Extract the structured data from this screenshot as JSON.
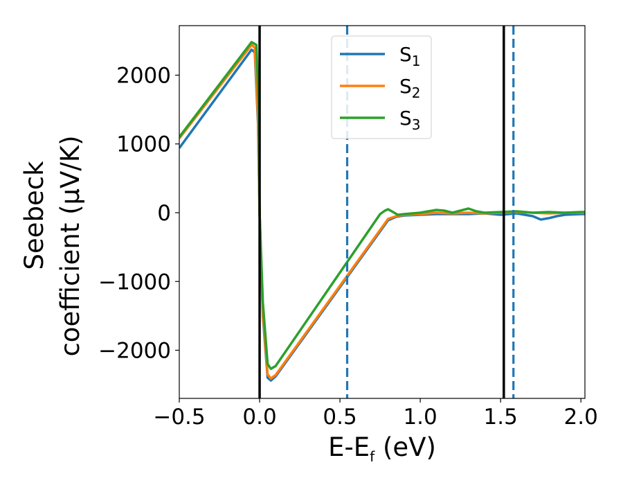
{
  "chart_data": {
    "type": "line",
    "xlabel_main": "E-E",
    "xlabel_sub": "f",
    "xlabel_unit": " (eV)",
    "ylabel_line1": "Seebeck",
    "ylabel_line2": "coefficient  (μV/K)",
    "xlim": [
      -0.5,
      2.025
    ],
    "ylim": [
      -2700,
      2720
    ],
    "xticks": [
      -0.5,
      0.0,
      0.5,
      1.0,
      1.5,
      2.0
    ],
    "xtick_labels": [
      "−0.5",
      "0.0",
      "0.5",
      "1.0",
      "1.5",
      "2.0"
    ],
    "yticks": [
      2000,
      1000,
      0,
      -1000,
      -2000
    ],
    "ytick_labels": [
      "2000",
      "1000",
      "0",
      "−1000",
      "−2000"
    ],
    "legend_position": "upper-center",
    "vlines": [
      {
        "x": 0.0,
        "style": "solid",
        "color": "#000000"
      },
      {
        "x": 1.52,
        "style": "solid",
        "color": "#000000"
      },
      {
        "x": 0.545,
        "style": "dashed",
        "color": "#1f77b4"
      },
      {
        "x": 1.58,
        "style": "dashed",
        "color": "#1f77b4"
      }
    ],
    "series": [
      {
        "name": "S",
        "sub": "1",
        "color": "#1f77b4",
        "points": [
          [
            -0.5,
            940
          ],
          [
            -0.05,
            2370
          ],
          [
            -0.03,
            2330
          ],
          [
            -0.01,
            1300
          ],
          [
            0.0,
            0
          ],
          [
            0.02,
            -1500
          ],
          [
            0.05,
            -2400
          ],
          [
            0.07,
            -2440
          ],
          [
            0.1,
            -2380
          ],
          [
            0.8,
            -110
          ],
          [
            0.85,
            -60
          ],
          [
            0.9,
            -40
          ],
          [
            1.0,
            -30
          ],
          [
            1.1,
            -20
          ],
          [
            1.2,
            -20
          ],
          [
            1.3,
            -20
          ],
          [
            1.4,
            -10
          ],
          [
            1.5,
            -30
          ],
          [
            1.55,
            -20
          ],
          [
            1.6,
            -10
          ],
          [
            1.7,
            -50
          ],
          [
            1.75,
            -100
          ],
          [
            1.8,
            -80
          ],
          [
            1.85,
            -50
          ],
          [
            1.9,
            -30
          ],
          [
            2.0,
            -20
          ],
          [
            2.025,
            -20
          ]
        ]
      },
      {
        "name": "S",
        "sub": "2",
        "color": "#ff7f0e",
        "points": [
          [
            -0.5,
            1080
          ],
          [
            -0.05,
            2440
          ],
          [
            -0.03,
            2400
          ],
          [
            -0.01,
            1400
          ],
          [
            0.0,
            0
          ],
          [
            0.02,
            -1450
          ],
          [
            0.05,
            -2350
          ],
          [
            0.07,
            -2410
          ],
          [
            0.1,
            -2360
          ],
          [
            0.8,
            -90
          ],
          [
            0.85,
            -50
          ],
          [
            0.9,
            -30
          ],
          [
            1.0,
            -20
          ],
          [
            1.1,
            0
          ],
          [
            1.2,
            -10
          ],
          [
            1.3,
            0
          ],
          [
            1.4,
            -10
          ],
          [
            1.5,
            0
          ],
          [
            1.6,
            10
          ],
          [
            1.7,
            0
          ],
          [
            1.8,
            -10
          ],
          [
            1.9,
            0
          ],
          [
            2.0,
            0
          ],
          [
            2.025,
            0
          ]
        ]
      },
      {
        "name": "S",
        "sub": "3",
        "color": "#2ca02c",
        "points": [
          [
            -0.5,
            1100
          ],
          [
            -0.05,
            2480
          ],
          [
            -0.02,
            2440
          ],
          [
            -0.005,
            1500
          ],
          [
            0.0,
            0
          ],
          [
            0.02,
            -1300
          ],
          [
            0.05,
            -2200
          ],
          [
            0.07,
            -2270
          ],
          [
            0.1,
            -2230
          ],
          [
            0.75,
            -20
          ],
          [
            0.78,
            30
          ],
          [
            0.8,
            50
          ],
          [
            0.83,
            10
          ],
          [
            0.86,
            -30
          ],
          [
            0.9,
            -20
          ],
          [
            1.0,
            0
          ],
          [
            1.05,
            20
          ],
          [
            1.1,
            40
          ],
          [
            1.15,
            30
          ],
          [
            1.2,
            0
          ],
          [
            1.25,
            30
          ],
          [
            1.3,
            60
          ],
          [
            1.35,
            20
          ],
          [
            1.4,
            0
          ],
          [
            1.5,
            10
          ],
          [
            1.6,
            20
          ],
          [
            1.7,
            0
          ],
          [
            1.8,
            10
          ],
          [
            1.9,
            0
          ],
          [
            2.0,
            10
          ],
          [
            2.025,
            10
          ]
        ]
      }
    ]
  }
}
